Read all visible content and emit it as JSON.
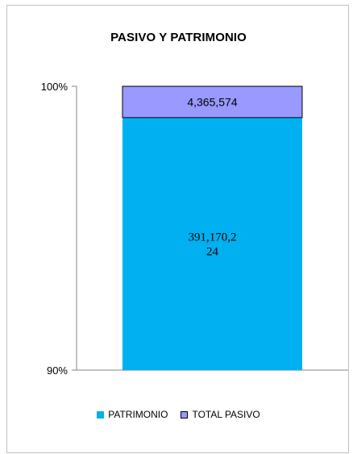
{
  "chart_data": {
    "type": "bar",
    "stacked": true,
    "normalized": true,
    "title": "PASIVO Y PATRIMONIO",
    "categories": [
      ""
    ],
    "ylim": [
      90,
      100
    ],
    "y_ticks": [
      "90%",
      "100%"
    ],
    "series": [
      {
        "name": "PATRIMONIO",
        "values": [
          391170224
        ],
        "label": "391,170,2\n24",
        "color": "#00b0f0"
      },
      {
        "name": "TOTAL PASIVO",
        "values": [
          4365574
        ],
        "label": "4,365,574",
        "color": "#9999ff"
      }
    ],
    "legend": "bottom",
    "grid": false
  }
}
